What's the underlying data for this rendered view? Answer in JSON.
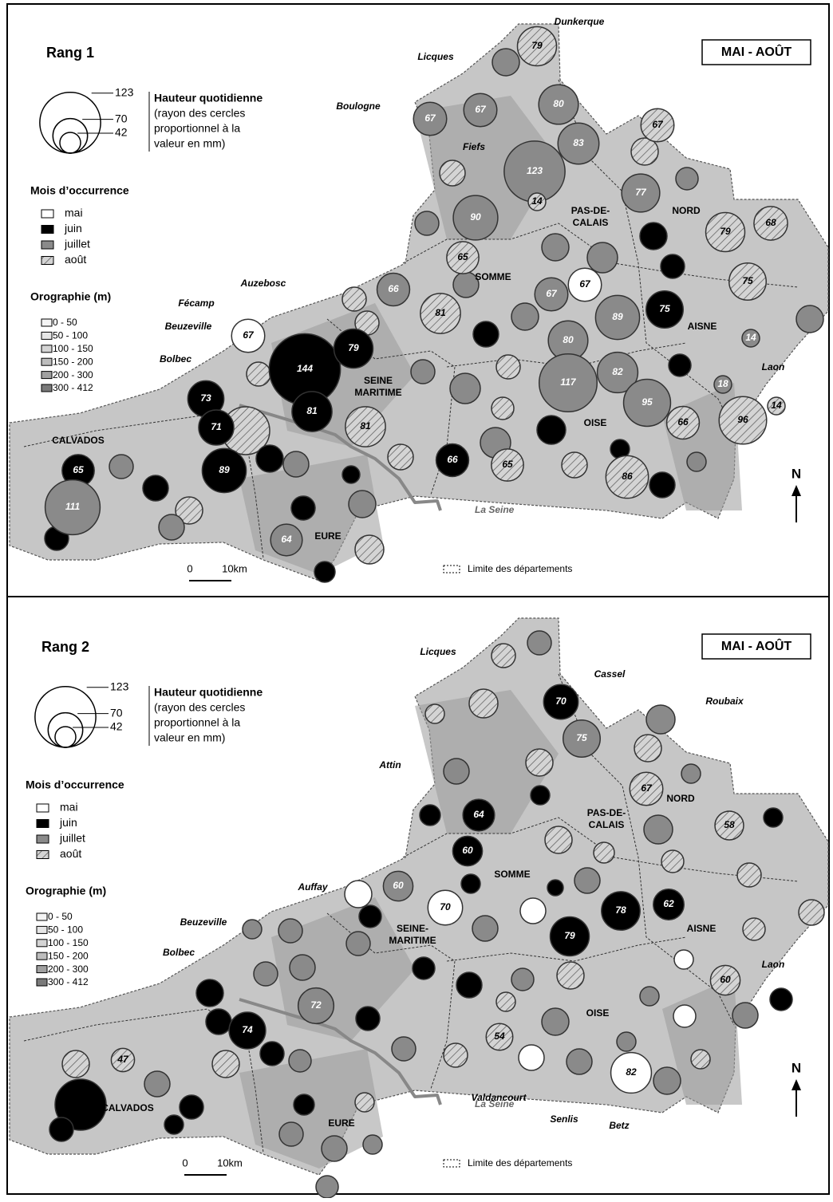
{
  "panels": [
    {
      "title": "Rang 1",
      "period": "MAI - AOÛT",
      "legend": {
        "size_ticks": [
          123,
          70,
          42
        ],
        "size_title": "Hauteur quotidienne",
        "size_text": [
          "(rayon des cercles",
          "proportionnel à la",
          "valeur en mm)"
        ],
        "month_title": "Mois d’occurrence",
        "months": [
          "mai",
          "juin",
          "juillet",
          "août"
        ],
        "oro_title": "Orographie (m)",
        "oro_classes": [
          "0 - 50",
          "50 - 100",
          "100 - 150",
          "150 - 200",
          "200 - 300",
          "300 - 412"
        ]
      },
      "places": [
        "Dunkerque",
        "Licques",
        "Boulogne",
        "Fiefs",
        "Auzebosc",
        "Fécamp",
        "Beuzeville",
        "Bolbec",
        "Laon"
      ],
      "departments": [
        {
          "lines": [
            "PAS-DE-",
            "CALAIS"
          ]
        },
        {
          "lines": [
            "NORD"
          ]
        },
        {
          "lines": [
            "SOMME"
          ]
        },
        {
          "lines": [
            "AISNE"
          ]
        },
        {
          "lines": [
            "SEINE",
            "MARITIME"
          ]
        },
        {
          "lines": [
            "OISE"
          ]
        },
        {
          "lines": [
            "CALVADOS"
          ]
        },
        {
          "lines": [
            "EURE"
          ]
        }
      ],
      "river": "La Seine",
      "north": "N",
      "scale": [
        "0",
        "10km"
      ],
      "boundary_legend": "Limite des départements",
      "circles": [
        {
          "value": 79,
          "month": "août"
        },
        {
          "value": 67,
          "month": "juillet"
        },
        {
          "value": 67,
          "month": "juillet"
        },
        {
          "value": 80,
          "month": "juillet"
        },
        {
          "value": 83,
          "month": "juillet"
        },
        {
          "value": 67,
          "month": "août"
        },
        {
          "value": 123,
          "month": "juillet"
        },
        {
          "value": 14,
          "month": "août"
        },
        {
          "value": 77,
          "month": "juillet"
        },
        {
          "value": 90,
          "month": "juillet"
        },
        {
          "value": 79,
          "month": "août"
        },
        {
          "value": 68,
          "month": "août"
        },
        {
          "value": 65,
          "month": "août"
        },
        {
          "value": 66,
          "month": "juillet"
        },
        {
          "value": 67,
          "month": "juillet"
        },
        {
          "value": 67,
          "month": "mai"
        },
        {
          "value": 75,
          "month": "août"
        },
        {
          "value": 81,
          "month": "août"
        },
        {
          "value": 89,
          "month": "juillet"
        },
        {
          "value": 75,
          "month": "juin"
        },
        {
          "value": 67,
          "month": "mai"
        },
        {
          "value": 144,
          "month": "juin"
        },
        {
          "value": 79,
          "month": "juin"
        },
        {
          "value": 80,
          "month": "juillet"
        },
        {
          "value": 14,
          "month": "juillet"
        },
        {
          "value": 82,
          "month": "juillet"
        },
        {
          "value": 117,
          "month": "juillet"
        },
        {
          "value": 18,
          "month": "juillet"
        },
        {
          "value": 73,
          "month": "juin"
        },
        {
          "value": 81,
          "month": "juin"
        },
        {
          "value": 71,
          "month": "juin"
        },
        {
          "value": 81,
          "month": "août"
        },
        {
          "value": 95,
          "month": "juillet"
        },
        {
          "value": 66,
          "month": "août"
        },
        {
          "value": 96,
          "month": "août"
        },
        {
          "value": 14,
          "month": "août"
        },
        {
          "value": 65,
          "month": "juin"
        },
        {
          "value": 89,
          "month": "juin"
        },
        {
          "value": 66,
          "month": "juin"
        },
        {
          "value": 65,
          "month": "août"
        },
        {
          "value": 86,
          "month": "août"
        },
        {
          "value": 111,
          "month": "juillet"
        },
        {
          "value": 64,
          "month": "juillet"
        }
      ]
    },
    {
      "title": "Rang 2",
      "period": "MAI - AOÛT",
      "legend": {
        "size_ticks": [
          123,
          70,
          42
        ],
        "size_title": "Hauteur quotidienne",
        "size_text": [
          "(rayon des cercles",
          "proportionnel à la",
          "valeur en mm)"
        ],
        "month_title": "Mois d’occurrence",
        "months": [
          "mai",
          "juin",
          "juillet",
          "août"
        ],
        "oro_title": "Orographie (m)",
        "oro_classes": [
          "0 - 50",
          "50 - 100",
          "100 - 150",
          "150 - 200",
          "200 - 300",
          "300 - 412"
        ]
      },
      "places": [
        "Licques",
        "Cassel",
        "Roubaix",
        "Attin",
        "Auffay",
        "Beuzeville",
        "Bolbec",
        "Laon",
        "Valdancourt",
        "Senlis",
        "Betz"
      ],
      "departments": [
        {
          "lines": [
            "PAS-DE-",
            "CALAIS"
          ]
        },
        {
          "lines": [
            "NORD"
          ]
        },
        {
          "lines": [
            "SOMME"
          ]
        },
        {
          "lines": [
            "AISNE"
          ]
        },
        {
          "lines": [
            "SEINE-",
            "MARITIME"
          ]
        },
        {
          "lines": [
            "OISE"
          ]
        },
        {
          "lines": [
            "CALVADOS"
          ]
        },
        {
          "lines": [
            "EURE"
          ]
        }
      ],
      "river": "La Seine",
      "north": "N",
      "scale": [
        "0",
        "10km"
      ],
      "boundary_legend": "Limite des départements",
      "circles": [
        {
          "value": 70,
          "month": "juin"
        },
        {
          "value": 75,
          "month": "juillet"
        },
        {
          "value": 67,
          "month": "août"
        },
        {
          "value": 58,
          "month": "août"
        },
        {
          "value": 64,
          "month": "juin"
        },
        {
          "value": 60,
          "month": "juin"
        },
        {
          "value": 60,
          "month": "juillet"
        },
        {
          "value": 70,
          "month": "mai"
        },
        {
          "value": 78,
          "month": "juin"
        },
        {
          "value": 62,
          "month": "juin"
        },
        {
          "value": 79,
          "month": "juin"
        },
        {
          "value": 60,
          "month": "août"
        },
        {
          "value": 72,
          "month": "juillet"
        },
        {
          "value": 74,
          "month": "juin"
        },
        {
          "value": 47,
          "month": "août"
        },
        {
          "value": 54,
          "month": "août"
        },
        {
          "value": 82,
          "month": "mai"
        }
      ]
    }
  ]
}
